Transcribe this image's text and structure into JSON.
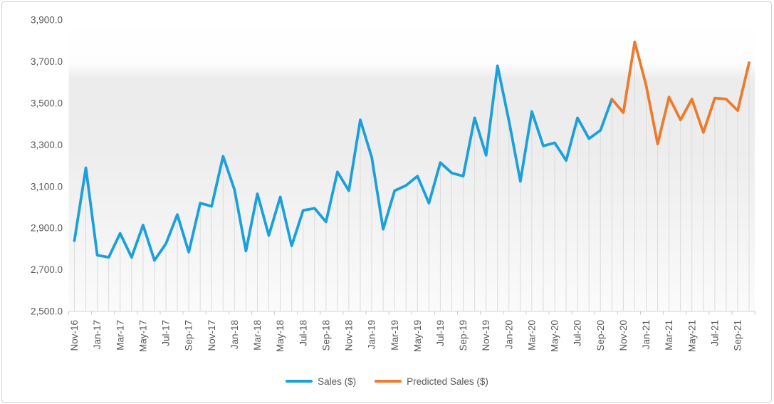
{
  "chart_data": {
    "type": "line",
    "title": "",
    "x_categories": [
      "Nov-16",
      "Dec-16",
      "Jan-17",
      "Feb-17",
      "Mar-17",
      "Apr-17",
      "May-17",
      "Jun-17",
      "Jul-17",
      "Aug-17",
      "Sep-17",
      "Oct-17",
      "Nov-17",
      "Dec-17",
      "Jan-18",
      "Feb-18",
      "Mar-18",
      "Apr-18",
      "May-18",
      "Jun-18",
      "Jul-18",
      "Aug-18",
      "Sep-18",
      "Oct-18",
      "Nov-18",
      "Dec-18",
      "Jan-19",
      "Feb-19",
      "Mar-19",
      "Apr-19",
      "May-19",
      "Jun-19",
      "Jul-19",
      "Aug-19",
      "Sep-19",
      "Oct-19",
      "Nov-19",
      "Dec-19",
      "Jan-20",
      "Feb-20",
      "Mar-20",
      "Apr-20",
      "May-20",
      "Jun-20",
      "Jul-20",
      "Aug-20",
      "Sep-20",
      "Oct-20",
      "Nov-20",
      "Dec-20",
      "Jan-21",
      "Feb-21",
      "Mar-21",
      "Apr-21",
      "May-21",
      "Jun-21",
      "Jul-21",
      "Aug-21",
      "Sep-21",
      "Oct-21"
    ],
    "x_label_interval": 2,
    "series": [
      {
        "name": "Sales ($)",
        "color": "#1BA0DC",
        "start_index": 0,
        "values": [
          2840,
          3190,
          2770,
          2760,
          2875,
          2760,
          2915,
          2745,
          2825,
          2965,
          2785,
          3020,
          3005,
          3245,
          3085,
          2790,
          3065,
          2865,
          3050,
          2815,
          2985,
          2995,
          2930,
          3170,
          3080,
          3420,
          3240,
          2895,
          3080,
          3105,
          3150,
          3020,
          3215,
          3165,
          3150,
          3430,
          3250,
          3680,
          3415,
          3125,
          3460,
          3295,
          3310,
          3225,
          3430,
          3330,
          3370,
          3520
        ]
      },
      {
        "name": "Predicted Sales ($)",
        "color": "#EC7B2D",
        "start_index": 47,
        "values": [
          3520,
          3455,
          3795,
          3585,
          3305,
          3530,
          3420,
          3520,
          3360,
          3525,
          3520,
          3465,
          3695
        ]
      }
    ],
    "y_axis": {
      "min": 2500,
      "max": 3900,
      "step": 200,
      "tick_labels": [
        "2,500.0",
        "2,700.0",
        "2,900.0",
        "3,100.0",
        "3,300.0",
        "3,500.0",
        "3,700.0",
        "3,900.0"
      ]
    },
    "legend_position": "bottom",
    "grid": "vertical drop line at every month, no horizontal gridlines"
  },
  "colors": {
    "axis_text": "#595959",
    "drop_line": "#DBDBDB",
    "axis_line": "#D6D6D6",
    "tick_mark": "#C9C9C9",
    "frame_border": "#D2D2D2",
    "plot_gradient_top": "#FFFFFF",
    "plot_gradient_mid": "#ECECEC",
    "plot_gradient_bottom": "#FBFBFB"
  }
}
